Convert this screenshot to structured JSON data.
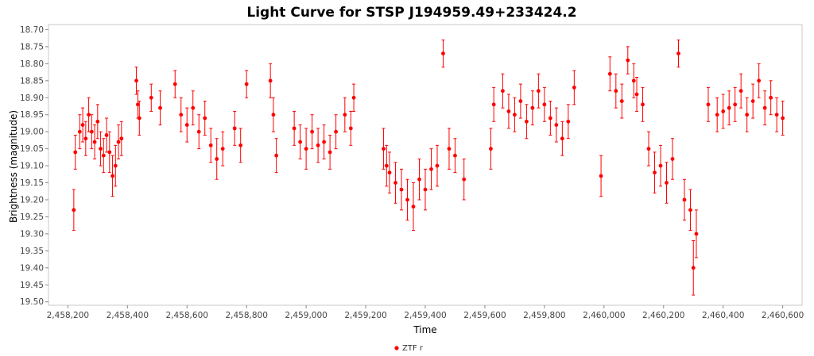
{
  "chart_data": {
    "type": "scatter",
    "title": "Light Curve for STSP J194959.49+233424.2",
    "xlabel": "Time",
    "ylabel": "Brightness (magnitude)",
    "xlim": [
      2458135,
      2460665
    ],
    "ylim": [
      18.685,
      19.51
    ],
    "y_inverted": true,
    "x_ticks": [
      2458200,
      2458400,
      2458600,
      2458800,
      2459000,
      2459200,
      2459400,
      2459600,
      2459800,
      2460000,
      2460200,
      2460400,
      2460600
    ],
    "x_tick_labels": [
      "2,458,200",
      "2,458,400",
      "2,458,600",
      "2,458,800",
      "2,459,000",
      "2,459,200",
      "2,459,400",
      "2,459,600",
      "2,459,800",
      "2,460,000",
      "2,460,200",
      "2,460,400",
      "2,460,600"
    ],
    "y_ticks": [
      18.7,
      18.75,
      18.8,
      18.85,
      18.9,
      18.95,
      19.0,
      19.05,
      19.1,
      19.15,
      19.2,
      19.25,
      19.3,
      19.35,
      19.4,
      19.45,
      19.5
    ],
    "y_tick_labels": [
      "18.70",
      "18.75",
      "18.80",
      "18.85",
      "18.90",
      "18.95",
      "19.00",
      "19.05",
      "19.10",
      "19.15",
      "19.20",
      "19.25",
      "19.30",
      "19.35",
      "19.40",
      "19.45",
      "19.50"
    ],
    "grid": false,
    "legend_position": "bottom-center",
    "series": [
      {
        "name": "ZTF r",
        "color": "#ff0000",
        "marker": "circle",
        "error_bars": true,
        "x": [
          2458220,
          2458225,
          2458240,
          2458250,
          2458260,
          2458270,
          2458280,
          2458290,
          2458300,
          2458310,
          2458320,
          2458330,
          2458340,
          2458350,
          2458360,
          2458370,
          2458380,
          2458430,
          2458435,
          2458440,
          2458480,
          2458510,
          2458560,
          2458580,
          2458600,
          2458620,
          2458640,
          2458660,
          2458680,
          2458700,
          2458720,
          2458760,
          2458780,
          2458800,
          2458880,
          2458890,
          2458900,
          2458960,
          2458980,
          2459000,
          2459020,
          2459040,
          2459060,
          2459080,
          2459100,
          2459130,
          2459150,
          2459160,
          2459260,
          2459270,
          2459280,
          2459300,
          2459320,
          2459340,
          2459360,
          2459380,
          2459400,
          2459420,
          2459440,
          2459460,
          2459480,
          2459500,
          2459530,
          2459620,
          2459630,
          2459660,
          2459680,
          2459700,
          2459720,
          2459740,
          2459760,
          2459780,
          2459800,
          2459820,
          2459840,
          2459860,
          2459880,
          2459900,
          2459990,
          2460020,
          2460040,
          2460060,
          2460080,
          2460100,
          2460110,
          2460130,
          2460150,
          2460170,
          2460190,
          2460210,
          2460230,
          2460250,
          2460270,
          2460290,
          2460300,
          2460310,
          2460350,
          2460380,
          2460400,
          2460420,
          2460440,
          2460460,
          2460480,
          2460500,
          2460520,
          2460540,
          2460560,
          2460580,
          2460600
        ],
        "y": [
          19.23,
          19.06,
          19.0,
          18.98,
          19.02,
          18.95,
          19.0,
          19.03,
          18.97,
          19.05,
          19.07,
          19.01,
          19.06,
          19.13,
          19.1,
          19.03,
          19.02,
          18.85,
          18.92,
          18.96,
          18.9,
          18.93,
          18.86,
          18.95,
          18.98,
          18.93,
          19.0,
          18.96,
          19.04,
          19.08,
          19.05,
          18.99,
          19.04,
          18.86,
          18.85,
          18.95,
          19.07,
          18.99,
          19.03,
          19.05,
          19.0,
          19.04,
          19.03,
          19.06,
          19.0,
          18.95,
          18.99,
          18.9,
          19.05,
          19.1,
          19.12,
          19.15,
          19.17,
          19.2,
          19.22,
          19.14,
          19.17,
          19.11,
          19.1,
          18.77,
          19.05,
          19.07,
          19.14,
          19.05,
          18.92,
          18.88,
          18.94,
          18.95,
          18.91,
          18.97,
          18.93,
          18.88,
          18.92,
          18.96,
          18.98,
          19.02,
          18.97,
          18.87,
          19.13,
          18.83,
          18.88,
          18.91,
          18.79,
          18.85,
          18.89,
          18.92,
          19.05,
          19.12,
          19.1,
          19.15,
          19.08,
          18.77,
          19.2,
          19.23,
          19.4,
          19.3,
          18.92,
          18.95,
          18.94,
          18.93,
          18.92,
          18.88,
          18.95,
          18.91,
          18.85,
          18.93,
          18.9,
          18.95,
          18.96
        ],
        "err": [
          0.06,
          0.05,
          0.05,
          0.05,
          0.05,
          0.05,
          0.05,
          0.05,
          0.05,
          0.05,
          0.05,
          0.05,
          0.06,
          0.06,
          0.06,
          0.05,
          0.05,
          0.04,
          0.04,
          0.05,
          0.04,
          0.05,
          0.04,
          0.05,
          0.05,
          0.05,
          0.05,
          0.05,
          0.05,
          0.06,
          0.05,
          0.05,
          0.05,
          0.04,
          0.05,
          0.05,
          0.05,
          0.05,
          0.05,
          0.06,
          0.05,
          0.05,
          0.05,
          0.05,
          0.05,
          0.05,
          0.05,
          0.04,
          0.06,
          0.06,
          0.06,
          0.06,
          0.06,
          0.06,
          0.07,
          0.06,
          0.06,
          0.06,
          0.06,
          0.04,
          0.06,
          0.05,
          0.06,
          0.06,
          0.05,
          0.05,
          0.05,
          0.05,
          0.05,
          0.05,
          0.05,
          0.05,
          0.05,
          0.05,
          0.05,
          0.05,
          0.05,
          0.05,
          0.06,
          0.05,
          0.05,
          0.05,
          0.04,
          0.05,
          0.05,
          0.05,
          0.05,
          0.06,
          0.06,
          0.06,
          0.06,
          0.04,
          0.06,
          0.06,
          0.08,
          0.07,
          0.05,
          0.05,
          0.05,
          0.05,
          0.05,
          0.05,
          0.05,
          0.05,
          0.05,
          0.05,
          0.05,
          0.05,
          0.05
        ]
      }
    ]
  }
}
